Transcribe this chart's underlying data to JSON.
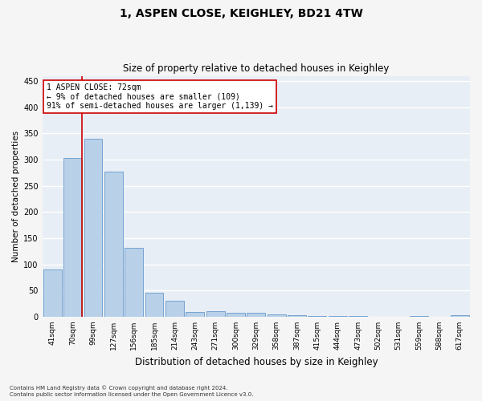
{
  "title": "1, ASPEN CLOSE, KEIGHLEY, BD21 4TW",
  "subtitle": "Size of property relative to detached houses in Keighley",
  "xlabel": "Distribution of detached houses by size in Keighley",
  "ylabel": "Number of detached properties",
  "bar_labels": [
    "41sqm",
    "70sqm",
    "99sqm",
    "127sqm",
    "156sqm",
    "185sqm",
    "214sqm",
    "243sqm",
    "271sqm",
    "300sqm",
    "329sqm",
    "358sqm",
    "387sqm",
    "415sqm",
    "444sqm",
    "473sqm",
    "502sqm",
    "531sqm",
    "559sqm",
    "588sqm",
    "617sqm"
  ],
  "bar_values": [
    90,
    303,
    340,
    277,
    131,
    46,
    30,
    9,
    10,
    8,
    7,
    5,
    3,
    2,
    1,
    1,
    0,
    0,
    2,
    0,
    3
  ],
  "bar_color": "#b8d0e8",
  "bar_edge_color": "#6699cc",
  "property_line_label": "1 ASPEN CLOSE: 72sqm",
  "annotation_line1": "← 9% of detached houses are smaller (109)",
  "annotation_line2": "91% of semi-detached houses are larger (1,139) →",
  "annotation_box_color": "#ffffff",
  "annotation_box_edge": "#cc0000",
  "line_color": "#cc0000",
  "ylim": [
    0,
    460
  ],
  "yticks": [
    0,
    50,
    100,
    150,
    200,
    250,
    300,
    350,
    400,
    450
  ],
  "background_color": "#e8eef5",
  "fig_background": "#f5f5f5",
  "grid_color": "#ffffff",
  "footer_line1": "Contains HM Land Registry data © Crown copyright and database right 2024.",
  "footer_line2": "Contains public sector information licensed under the Open Government Licence v3.0.",
  "title_fontsize": 10,
  "subtitle_fontsize": 8.5,
  "xlabel_fontsize": 8.5,
  "ylabel_fontsize": 7.5,
  "tick_fontsize": 6.5,
  "annotation_fontsize": 7,
  "footer_fontsize": 5
}
